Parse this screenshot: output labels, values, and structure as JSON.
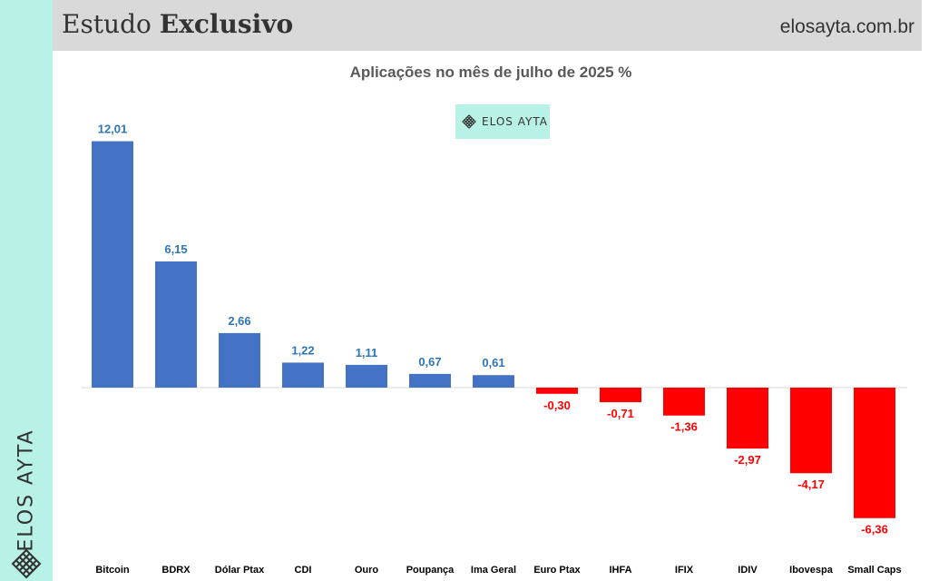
{
  "header": {
    "title_part1": "Estudo ",
    "title_part2": "Exclusivo",
    "site": "elosayta.com.br"
  },
  "brand": {
    "side_text": "ELOS AYTA",
    "badge_text": "ELOS AYTA",
    "accent_color": "#b8f2e6",
    "logo_icon": "lattice-square-icon"
  },
  "chart_data": {
    "type": "bar",
    "title": "Aplicações no mês de julho de 2025 %",
    "categories": [
      "Bitcoin",
      "BDRX",
      "Dólar Ptax",
      "CDI",
      "Ouro",
      "Poupança",
      "Ima Geral",
      "Euro Ptax",
      "IHFA",
      "IFIX",
      "IDIV",
      "Ibovespa",
      "Small Caps"
    ],
    "values": [
      12.01,
      6.15,
      2.66,
      1.22,
      1.11,
      0.67,
      0.61,
      -0.3,
      -0.71,
      -1.36,
      -2.97,
      -4.17,
      -6.36
    ],
    "value_labels": [
      "12,01",
      "6,15",
      "2,66",
      "1,22",
      "1,11",
      "0,67",
      "0,61",
      "-0,30",
      "-0,71",
      "-1,36",
      "-2,97",
      "-4,17",
      "-6,36"
    ],
    "ylim": [
      -6.36,
      12.01
    ],
    "xlabel": "",
    "ylabel": "",
    "grid": false,
    "legend": "none",
    "positive_color": "#4472c4",
    "negative_color": "#ff0000",
    "positive_label_color": "#2e75b6",
    "negative_label_color": "#ff0000"
  }
}
